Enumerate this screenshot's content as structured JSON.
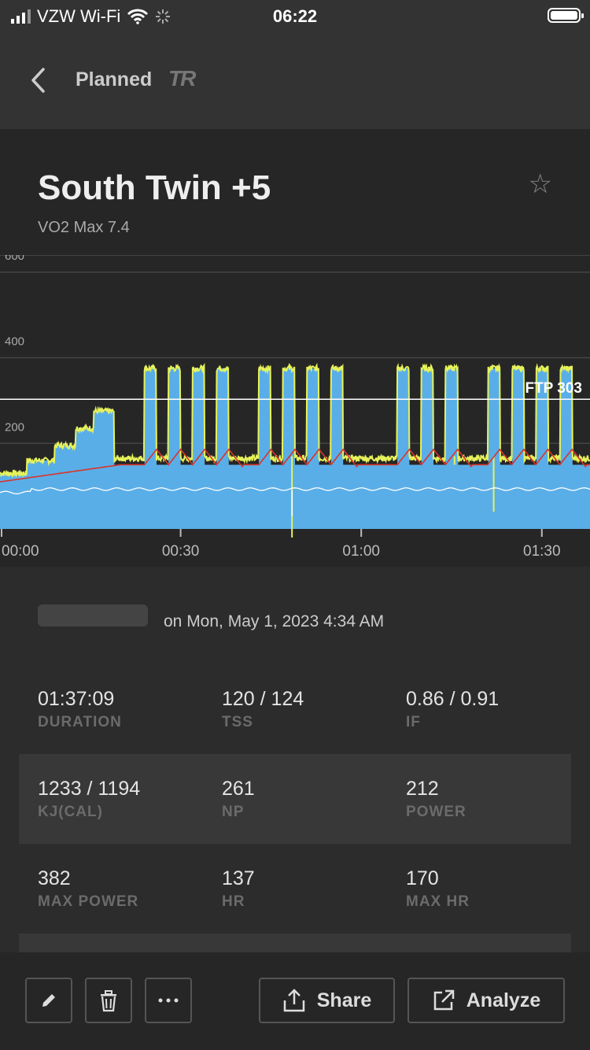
{
  "status": {
    "carrier": "VZW Wi-Fi",
    "time": "06:22"
  },
  "nav": {
    "back_label": "Planned",
    "logo": "TR"
  },
  "workout": {
    "name": "South Twin +5",
    "subtitle": "VO2 Max 7.4",
    "favorite_icon": "star-icon"
  },
  "chart_data": {
    "type": "line",
    "y_ticks": [
      "600",
      "400",
      "200"
    ],
    "x_ticks": [
      "00:00",
      "00:30",
      "01:00",
      "01:30"
    ],
    "ylim": [
      0,
      640
    ],
    "ftp_label": "FTP 303",
    "ftp": 303,
    "series": [
      {
        "color": "#5aaee8"
      },
      {
        "color": "#e6f25a"
      },
      {
        "color": "#d9342b"
      },
      {
        "color": "#ffffff"
      }
    ],
    "target_intervals": [
      {
        "start": 0.0,
        "end": 4.5,
        "watts": 130
      },
      {
        "start": 4.5,
        "end": 9.0,
        "watts": 160
      },
      {
        "start": 9.0,
        "end": 12.5,
        "watts": 195
      },
      {
        "start": 12.5,
        "end": 15.5,
        "watts": 235
      },
      {
        "start": 15.5,
        "end": 19.0,
        "watts": 275
      },
      {
        "start": 24.0,
        "end": 26.0,
        "watts": 375
      },
      {
        "start": 28.0,
        "end": 30.0,
        "watts": 375
      },
      {
        "start": 32.0,
        "end": 34.0,
        "watts": 375
      },
      {
        "start": 36.0,
        "end": 38.0,
        "watts": 375
      },
      {
        "start": 43.0,
        "end": 45.0,
        "watts": 375
      },
      {
        "start": 47.0,
        "end": 49.0,
        "watts": 375
      },
      {
        "start": 51.0,
        "end": 53.0,
        "watts": 375
      },
      {
        "start": 55.0,
        "end": 57.0,
        "watts": 375
      },
      {
        "start": 66.0,
        "end": 68.0,
        "watts": 375
      },
      {
        "start": 70.0,
        "end": 72.0,
        "watts": 375
      },
      {
        "start": 74.0,
        "end": 76.0,
        "watts": 375
      },
      {
        "start": 81.0,
        "end": 83.0,
        "watts": 375
      },
      {
        "start": 85.0,
        "end": 87.0,
        "watts": 375
      },
      {
        "start": 89.0,
        "end": 91.0,
        "watts": 375
      },
      {
        "start": 93.0,
        "end": 95.0,
        "watts": 375
      }
    ],
    "base_watts": 150,
    "duration_min": 98
  },
  "detail": {
    "date_text": "on Mon, May 1, 2023 4:34 AM",
    "rows": [
      [
        {
          "value": "01:37:09",
          "label": "DURATION"
        },
        {
          "value": "120 / 124",
          "label": "TSS"
        },
        {
          "value": "0.86 / 0.91",
          "label": "IF"
        }
      ],
      [
        {
          "value": "1233 / 1194",
          "label": "KJ(CAL)"
        },
        {
          "value": "261",
          "label": "NP"
        },
        {
          "value": "212",
          "label": "POWER"
        }
      ],
      [
        {
          "value": "382",
          "label": "MAX POWER"
        },
        {
          "value": "137",
          "label": "HR"
        },
        {
          "value": "170",
          "label": "MAX HR"
        }
      ]
    ]
  },
  "footer": {
    "share_label": "Share",
    "analyze_label": "Analyze"
  }
}
